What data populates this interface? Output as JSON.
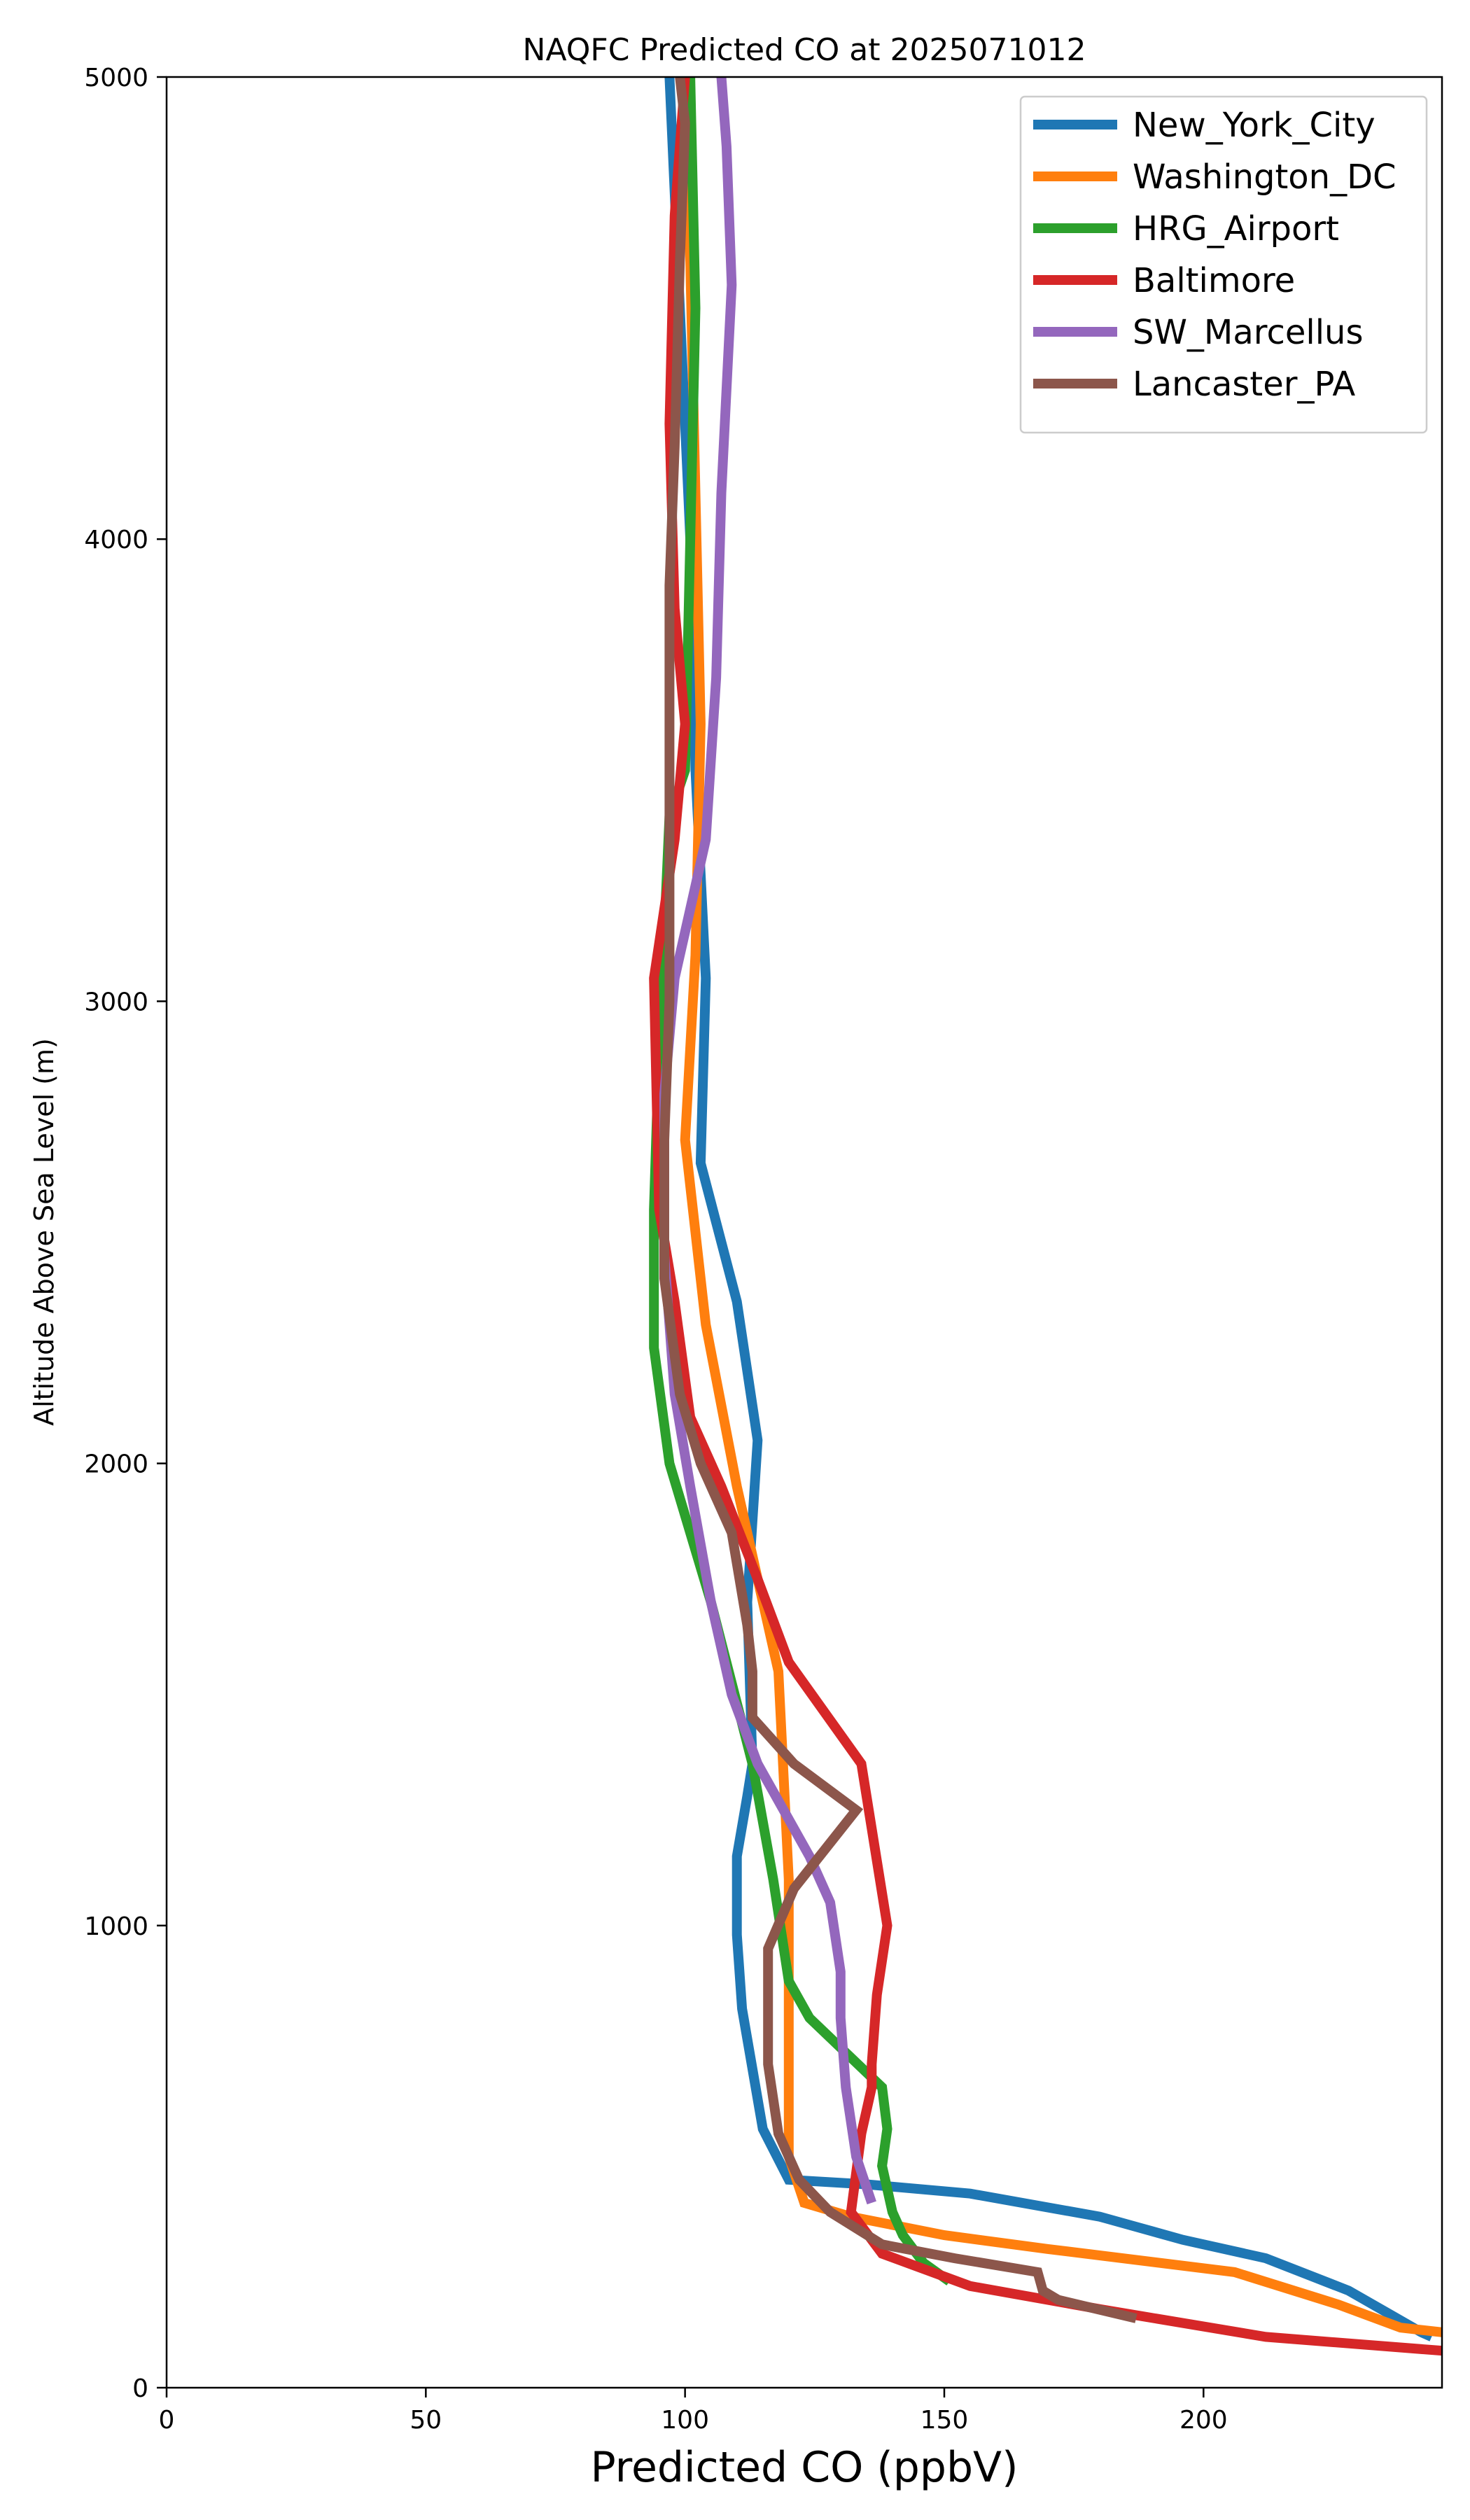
{
  "chart_data": {
    "type": "line",
    "title": "NAQFC Predicted CO at 2025071012",
    "xlabel": "Predicted CO (ppbV)",
    "ylabel": "Altitude Above Sea Level (m)",
    "xlim": [
      0,
      246
    ],
    "ylim": [
      0,
      5000
    ],
    "xticks": [
      0,
      50,
      100,
      150,
      200
    ],
    "yticks": [
      0,
      1000,
      2000,
      3000,
      4000,
      5000
    ],
    "grid": false,
    "legend_position": "top-right",
    "series": [
      {
        "name": "New_York_City",
        "color": "#1f77b4",
        "points": [
          [
            244,
            110
          ],
          [
            242,
            120
          ],
          [
            228,
            210
          ],
          [
            212,
            280
          ],
          [
            196,
            320
          ],
          [
            180,
            370
          ],
          [
            155,
            420
          ],
          [
            135,
            440
          ],
          [
            120,
            450
          ],
          [
            115,
            560
          ],
          [
            111,
            820
          ],
          [
            110,
            980
          ],
          [
            110,
            1150
          ],
          [
            112,
            1280
          ],
          [
            113,
            1350
          ],
          [
            112,
            1700
          ],
          [
            114,
            2050
          ],
          [
            110,
            2350
          ],
          [
            103,
            2650
          ],
          [
            104,
            3050
          ],
          [
            102,
            3500
          ],
          [
            101,
            4000
          ],
          [
            99,
            4500
          ],
          [
            97,
            5000
          ]
        ]
      },
      {
        "name": "Washington_DC",
        "color": "#ff7f0e",
        "points": [
          [
            246,
            120
          ],
          [
            238,
            130
          ],
          [
            226,
            180
          ],
          [
            206,
            250
          ],
          [
            170,
            300
          ],
          [
            150,
            330
          ],
          [
            132,
            370
          ],
          [
            123,
            400
          ],
          [
            120,
            500
          ],
          [
            120,
            900
          ],
          [
            120,
            1100
          ],
          [
            118,
            1550
          ],
          [
            110,
            1950
          ],
          [
            104,
            2300
          ],
          [
            100,
            2700
          ],
          [
            102,
            3100
          ],
          [
            103,
            3600
          ],
          [
            102,
            4100
          ],
          [
            101,
            4600
          ],
          [
            100,
            5000
          ]
        ]
      },
      {
        "name": "HRG_Airport",
        "color": "#2ca02c",
        "points": [
          [
            151,
            230
          ],
          [
            146,
            270
          ],
          [
            142,
            330
          ],
          [
            140,
            380
          ],
          [
            138,
            480
          ],
          [
            139,
            560
          ],
          [
            138,
            650
          ],
          [
            124,
            800
          ],
          [
            120,
            880
          ],
          [
            117,
            1100
          ],
          [
            113,
            1350
          ],
          [
            105,
            1700
          ],
          [
            97,
            2000
          ],
          [
            94,
            2250
          ],
          [
            94,
            2550
          ],
          [
            95,
            2900
          ],
          [
            97,
            3400
          ],
          [
            100,
            3500
          ],
          [
            101,
            4000
          ],
          [
            102,
            4500
          ],
          [
            101,
            5000
          ]
        ]
      },
      {
        "name": "Baltimore",
        "color": "#d62728",
        "points": [
          [
            246,
            80
          ],
          [
            212,
            110
          ],
          [
            180,
            170
          ],
          [
            155,
            220
          ],
          [
            138,
            290
          ],
          [
            132,
            380
          ],
          [
            134,
            550
          ],
          [
            136,
            650
          ],
          [
            136,
            700
          ],
          [
            137,
            850
          ],
          [
            139,
            1000
          ],
          [
            134,
            1350
          ],
          [
            120,
            1570
          ],
          [
            114,
            1750
          ],
          [
            107,
            1950
          ],
          [
            101,
            2100
          ],
          [
            98,
            2350
          ],
          [
            95,
            2550
          ],
          [
            94,
            3050
          ],
          [
            98,
            3350
          ],
          [
            100,
            3600
          ],
          [
            98,
            3850
          ],
          [
            97,
            4250
          ],
          [
            98,
            4700
          ],
          [
            100,
            5000
          ]
        ]
      },
      {
        "name": "SW_Marcellus",
        "color": "#9467bd",
        "points": [
          [
            136,
            400
          ],
          [
            133,
            500
          ],
          [
            131,
            650
          ],
          [
            130,
            800
          ],
          [
            130,
            900
          ],
          [
            128,
            1050
          ],
          [
            124,
            1150
          ],
          [
            119,
            1250
          ],
          [
            114,
            1350
          ],
          [
            109,
            1500
          ],
          [
            105,
            1700
          ],
          [
            101,
            1950
          ],
          [
            98,
            2150
          ],
          [
            96,
            2450
          ],
          [
            96,
            2800
          ],
          [
            98,
            3050
          ],
          [
            101,
            3200
          ],
          [
            104,
            3350
          ],
          [
            106,
            3700
          ],
          [
            107,
            4100
          ],
          [
            109,
            4550
          ],
          [
            108,
            4850
          ],
          [
            107,
            5000
          ]
        ]
      },
      {
        "name": "Lancaster_PA",
        "color": "#8c564b",
        "points": [
          [
            187,
            150
          ],
          [
            172,
            190
          ],
          [
            169,
            210
          ],
          [
            168,
            250
          ],
          [
            152,
            280
          ],
          [
            138,
            310
          ],
          [
            128,
            380
          ],
          [
            122,
            450
          ],
          [
            118,
            550
          ],
          [
            116,
            700
          ],
          [
            116,
            800
          ],
          [
            116,
            950
          ],
          [
            121,
            1080
          ],
          [
            133,
            1250
          ],
          [
            121,
            1350
          ],
          [
            113,
            1450
          ],
          [
            113,
            1550
          ],
          [
            112,
            1650
          ],
          [
            109,
            1850
          ],
          [
            103,
            2000
          ],
          [
            99,
            2150
          ],
          [
            96,
            2400
          ],
          [
            96,
            2700
          ],
          [
            97,
            3000
          ],
          [
            97,
            3400
          ],
          [
            97,
            3900
          ],
          [
            98,
            4200
          ],
          [
            99,
            4600
          ],
          [
            100,
            4900
          ],
          [
            99,
            5000
          ]
        ]
      }
    ]
  }
}
